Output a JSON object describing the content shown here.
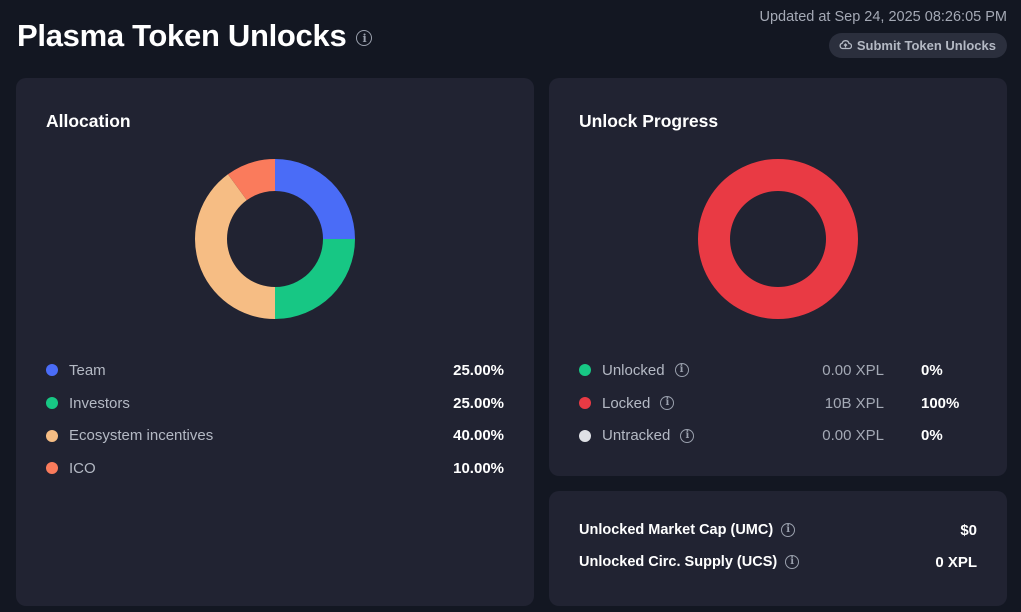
{
  "header": {
    "title": "Plasma Token Unlocks",
    "updated": "Updated at Sep 24, 2025 08:26:05 PM",
    "submit_label": "Submit Token Unlocks"
  },
  "allocation": {
    "title": "Allocation",
    "items": [
      {
        "label": "Team",
        "pct_text": "25.00%",
        "value": 25,
        "color": "#4a6cf7"
      },
      {
        "label": "Investors",
        "pct_text": "25.00%",
        "value": 25,
        "color": "#17c784"
      },
      {
        "label": "Ecosystem incentives",
        "pct_text": "40.00%",
        "value": 40,
        "color": "#f6bd84"
      },
      {
        "label": "ICO",
        "pct_text": "10.00%",
        "value": 10,
        "color": "#fa7b5c"
      }
    ]
  },
  "progress": {
    "title": "Unlock Progress",
    "items": [
      {
        "label": "Unlocked",
        "amount": "0.00 XPL",
        "pct_text": "0%",
        "value": 0,
        "color": "#17c784"
      },
      {
        "label": "Locked",
        "amount": "10B XPL",
        "pct_text": "100%",
        "value": 100,
        "color": "#e93a44"
      },
      {
        "label": "Untracked",
        "amount": "0.00 XPL",
        "pct_text": "0%",
        "value": 0,
        "color": "#dfe1e6"
      }
    ]
  },
  "stats": {
    "umc_label": "Unlocked Market Cap (UMC)",
    "umc_value": "$0",
    "ucs_label": "Unlocked Circ. Supply (UCS)",
    "ucs_value": "0 XPL"
  },
  "icons": {
    "info": "info-icon",
    "upload": "cloud-upload-icon"
  }
}
